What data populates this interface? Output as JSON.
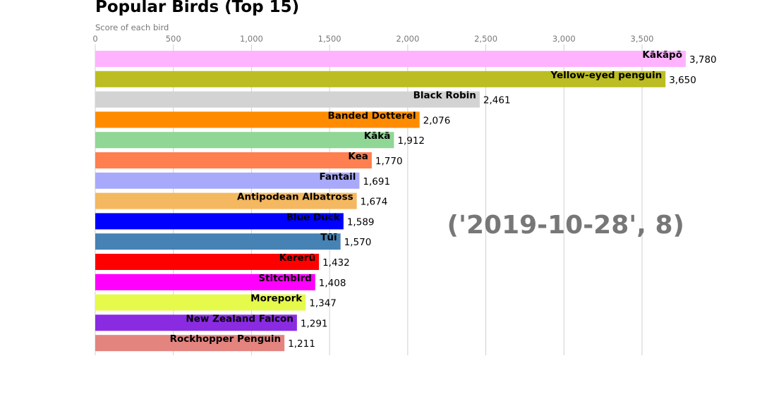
{
  "chart_data": {
    "type": "bar",
    "orientation": "horizontal",
    "title": "Popular Birds (Top 15)",
    "subtitle": "Score of each bird",
    "period_label": "('2019-10-28', 8)",
    "xlim": [
      0,
      3780
    ],
    "x_ticks": [
      0,
      500,
      1000,
      1500,
      2000,
      2500,
      3000,
      3500
    ],
    "x_tick_labels": [
      "0",
      "500",
      "1,000",
      "1,500",
      "2,000",
      "2,500",
      "3,000",
      "3,500"
    ],
    "grid": true,
    "bars": [
      {
        "label": "Kākāpō",
        "value": 3780,
        "value_label": "3,780",
        "color": "#ffb3ff"
      },
      {
        "label": "Yellow-eyed penguin",
        "value": 3650,
        "value_label": "3,650",
        "color": "#bcbd22"
      },
      {
        "label": "Black Robin",
        "value": 2461,
        "value_label": "2,461",
        "color": "#d3d3d3"
      },
      {
        "label": "Banded Dotterel",
        "value": 2076,
        "value_label": "2,076",
        "color": "#ff8c00"
      },
      {
        "label": "Kākā",
        "value": 1912,
        "value_label": "1,912",
        "color": "#90d695"
      },
      {
        "label": "Kea",
        "value": 1770,
        "value_label": "1,770",
        "color": "#ff7f50"
      },
      {
        "label": "Fantail",
        "value": 1691,
        "value_label": "1,691",
        "color": "#a9a9fc"
      },
      {
        "label": "Antipodean Albatross",
        "value": 1674,
        "value_label": "1,674",
        "color": "#f4b860"
      },
      {
        "label": "Blue Duck",
        "value": 1589,
        "value_label": "1,589",
        "color": "#0000ff"
      },
      {
        "label": "Tūī",
        "value": 1570,
        "value_label": "1,570",
        "color": "#4682b4"
      },
      {
        "label": "Kererū",
        "value": 1432,
        "value_label": "1,432",
        "color": "#ff0000"
      },
      {
        "label": "Stitchbird",
        "value": 1408,
        "value_label": "1,408",
        "color": "#ff00ff"
      },
      {
        "label": "Morepork",
        "value": 1347,
        "value_label": "1,347",
        "color": "#e6fa4b"
      },
      {
        "label": "New Zealand Falcon",
        "value": 1291,
        "value_label": "1,291",
        "color": "#8a2be2"
      },
      {
        "label": "Rockhopper Penguin",
        "value": 1211,
        "value_label": "1,211",
        "color": "#e3847f"
      }
    ]
  }
}
